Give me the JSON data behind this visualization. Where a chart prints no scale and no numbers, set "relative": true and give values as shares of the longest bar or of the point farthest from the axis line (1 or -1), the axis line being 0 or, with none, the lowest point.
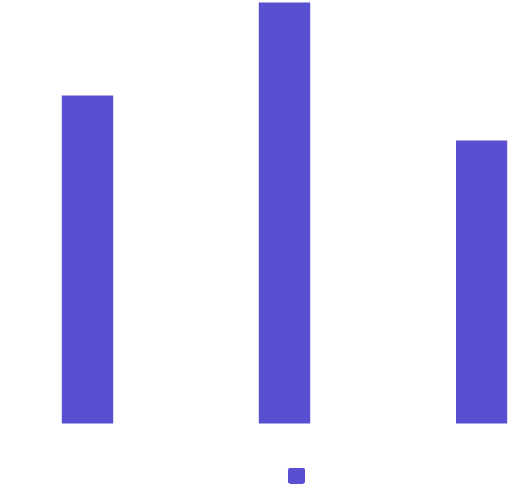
{
  "chart_data": {
    "type": "bar",
    "relative": true,
    "categories": [
      null,
      null,
      null
    ],
    "series": [
      {
        "color": "#5850d0",
        "values": [
          0.78,
          1,
          0.674
        ]
      }
    ],
    "grid": false
  }
}
